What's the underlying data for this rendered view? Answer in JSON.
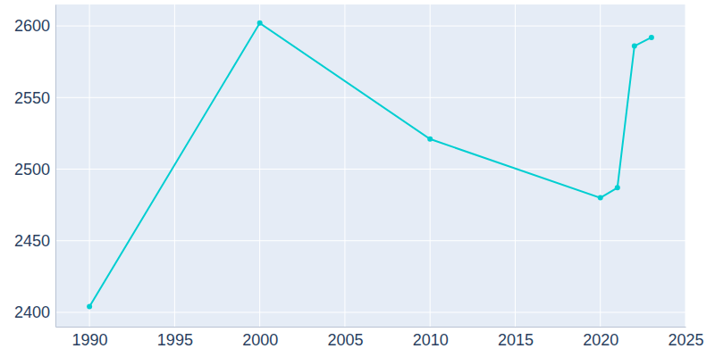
{
  "chart_data": {
    "type": "line",
    "x": [
      1990,
      2000,
      2010,
      2020,
      2021,
      2022,
      2023
    ],
    "values": [
      2404,
      2602,
      2521,
      2480,
      2487,
      2586,
      2592
    ],
    "color": "#00ced1",
    "marker": "circle",
    "xlim": [
      1988,
      2025
    ],
    "xticks": [
      1990,
      1995,
      2000,
      2005,
      2010,
      2015,
      2020,
      2025
    ],
    "ylim": [
      2390,
      2615
    ],
    "yticks": [
      2400,
      2450,
      2500,
      2550,
      2600
    ],
    "grid": true
  }
}
